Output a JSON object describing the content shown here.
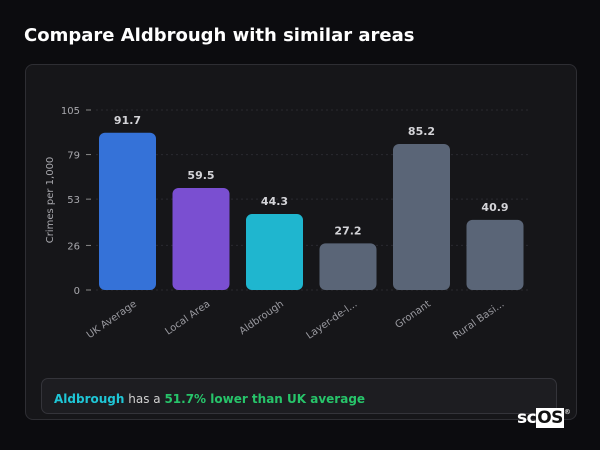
{
  "header": {
    "title": "Compare Aldbrough with similar areas"
  },
  "chart_data": {
    "type": "bar",
    "categories": [
      "UK Average",
      "Local Area",
      "Aldbrough",
      "Layer-de-l...",
      "Gronant",
      "Rural Basi..."
    ],
    "values": [
      91.7,
      59.5,
      44.3,
      27.2,
      85.2,
      40.9
    ],
    "value_labels": [
      "91.7",
      "59.5",
      "44.3",
      "27.2",
      "85.2",
      "40.9"
    ],
    "colors": [
      "#3572d8",
      "#7a4fd1",
      "#1fb6cf",
      "#5a6577",
      "#5a6577",
      "#5a6577"
    ],
    "ylabel": "Crimes per 1,000",
    "yticks": [
      0,
      26,
      53,
      79,
      105
    ],
    "ylim": [
      0,
      105
    ],
    "grid": true
  },
  "footer": {
    "place": "Aldbrough",
    "middle": " has a ",
    "comparison": "51.7% lower than UK average",
    "place_color": "#1fc6d6",
    "comparison_color": "#27c46a"
  },
  "logo": {
    "text_sc": "sc",
    "text_os": "OS",
    "reg": "®"
  }
}
